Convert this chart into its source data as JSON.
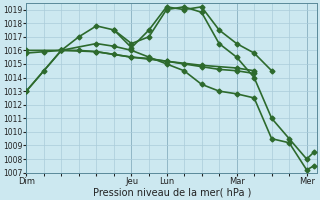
{
  "xlabel": "Pression niveau de la mer( hPa )",
  "background_color": "#cce8f0",
  "grid_color": "#aaccda",
  "line_color": "#2d6a2d",
  "ylim": [
    1007,
    1019.5
  ],
  "yticks": [
    1007,
    1008,
    1009,
    1010,
    1011,
    1012,
    1013,
    1014,
    1015,
    1016,
    1017,
    1018,
    1019
  ],
  "xtick_labels": [
    "Dim",
    "",
    "Jeu",
    "Lun",
    "",
    "Mar",
    "",
    "Mer"
  ],
  "xtick_positions": [
    0,
    2,
    3,
    4,
    5,
    6,
    7,
    8
  ],
  "day_vlines": [
    0,
    3,
    4,
    6,
    8
  ],
  "xlim": [
    0,
    8.3
  ],
  "series": [
    {
      "x": [
        0,
        0.5,
        1.0,
        1.5,
        2.0,
        2.5,
        3.0,
        3.5,
        4.0,
        4.5,
        5.0,
        5.5,
        6.0,
        6.5,
        7.0
      ],
      "y": [
        1013.0,
        1014.5,
        1016.0,
        1017.0,
        1017.8,
        1017.5,
        1016.2,
        1017.5,
        1019.2,
        1019.0,
        1019.2,
        1017.5,
        1016.5,
        1015.8,
        1014.5
      ],
      "marker": "D",
      "ms": 2.5,
      "lw": 1.2
    },
    {
      "x": [
        0,
        1.0,
        2.0,
        3.0,
        4.0,
        5.0,
        6.0,
        6.5
      ],
      "y": [
        1016.0,
        1016.0,
        1015.9,
        1015.5,
        1015.2,
        1014.9,
        1014.7,
        1014.5
      ],
      "marker": "D",
      "ms": 2.5,
      "lw": 1.2
    },
    {
      "x": [
        0,
        0.5,
        1.0,
        1.5,
        2.0,
        2.5,
        3.0,
        3.5,
        4.0,
        4.5,
        5.0,
        5.5,
        6.0,
        6.5
      ],
      "y": [
        1015.8,
        1015.9,
        1016.0,
        1016.0,
        1015.9,
        1015.7,
        1015.5,
        1015.4,
        1015.2,
        1015.0,
        1014.8,
        1014.6,
        1014.5,
        1014.3
      ],
      "marker": "D",
      "ms": 2.5,
      "lw": 1.2
    },
    {
      "x": [
        0,
        1.0,
        2.0,
        2.5,
        3.0,
        3.5,
        4.0,
        4.5,
        5.0,
        5.5,
        6.0,
        6.5,
        7.0,
        7.5,
        8.0,
        8.2
      ],
      "y": [
        1013.0,
        1016.0,
        1016.5,
        1016.3,
        1016.0,
        1015.5,
        1015.0,
        1014.5,
        1013.5,
        1013.0,
        1012.8,
        1012.5,
        1009.5,
        1009.2,
        1007.2,
        1007.5
      ],
      "marker": "D",
      "ms": 2.5,
      "lw": 1.2
    },
    {
      "x": [
        2.5,
        3.0,
        3.5,
        4.0,
        4.5,
        5.0,
        5.5,
        6.0,
        6.5,
        7.0,
        7.5,
        8.0,
        8.2
      ],
      "y": [
        1017.5,
        1016.5,
        1017.0,
        1019.0,
        1019.2,
        1018.8,
        1016.5,
        1015.5,
        1014.0,
        1011.0,
        1009.5,
        1008.0,
        1008.5
      ],
      "marker": "D",
      "ms": 2.5,
      "lw": 1.2
    }
  ]
}
